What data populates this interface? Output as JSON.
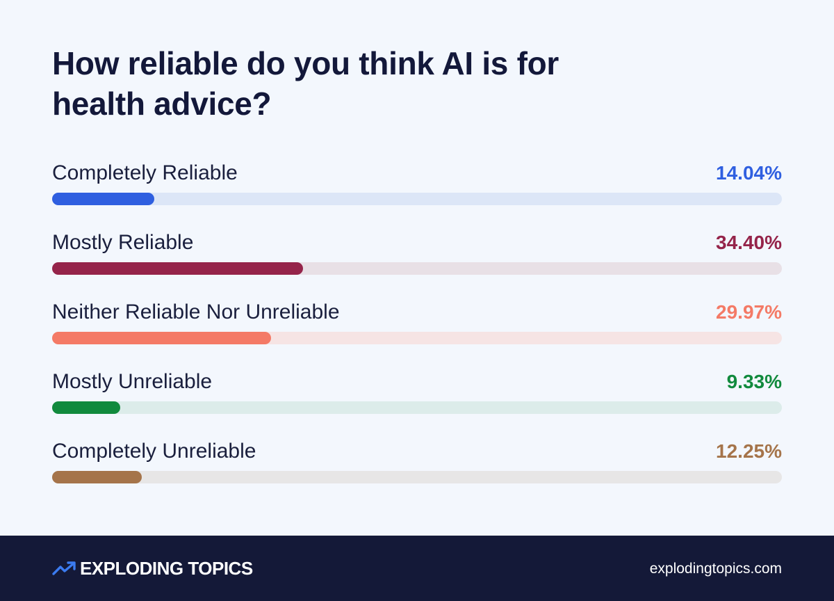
{
  "chart_data": {
    "type": "bar",
    "orientation": "horizontal",
    "title": "How reliable do you think AI is for health advice?",
    "xlim": [
      0,
      100
    ],
    "categories": [
      "Completely Reliable",
      "Mostly Reliable",
      "Neither Reliable Nor Unreliable",
      "Mostly Unreliable",
      "Completely Unreliable"
    ],
    "values": [
      14.04,
      34.4,
      29.97,
      9.33,
      12.25
    ],
    "value_labels": [
      "14.04%",
      "34.40%",
      "29.97%",
      "9.33%",
      "12.25%"
    ],
    "colors": [
      "#2f5fe0",
      "#95244a",
      "#f47a66",
      "#118a3d",
      "#a5744a"
    ],
    "track_colors": [
      "#dce6f7",
      "#e8e0e6",
      "#f6e4e4",
      "#dcecea",
      "#e7e6e6"
    ]
  },
  "footer": {
    "brand": "EXPLODING TOPICS",
    "brand_icon": "trending-arrow-icon",
    "site": "explodingtopics.com"
  }
}
